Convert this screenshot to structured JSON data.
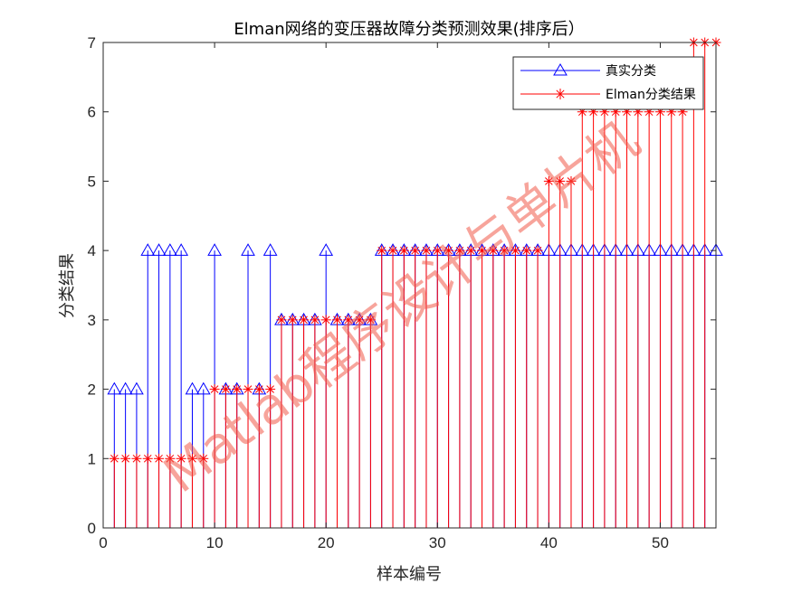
{
  "chart_data": {
    "type": "stem",
    "title": "Elman网络的变压器故障分类预测效果(排序后）",
    "xlabel": "样本编号",
    "ylabel": "分类结果",
    "xlim": [
      0,
      55
    ],
    "ylim": [
      0,
      7
    ],
    "xticks": [
      0,
      10,
      20,
      30,
      40,
      50
    ],
    "yticks": [
      0,
      1,
      2,
      3,
      4,
      5,
      6,
      7
    ],
    "grid": false,
    "legend_position": "top-right",
    "series": [
      {
        "name": "真实分类",
        "color": "#0000ff",
        "marker": "triangle",
        "x": [
          1,
          2,
          3,
          4,
          5,
          6,
          7,
          8,
          9,
          10,
          11,
          12,
          13,
          14,
          15,
          16,
          17,
          18,
          19,
          20,
          21,
          22,
          23,
          24,
          25,
          26,
          27,
          28,
          29,
          30,
          31,
          32,
          33,
          34,
          35,
          36,
          37,
          38,
          39,
          40,
          41,
          42,
          43,
          44,
          45,
          46,
          47,
          48,
          49,
          50,
          51,
          52,
          53,
          54,
          55
        ],
        "values": [
          2,
          2,
          2,
          4,
          4,
          4,
          4,
          2,
          2,
          4,
          2,
          2,
          4,
          2,
          4,
          3,
          3,
          3,
          3,
          4,
          3,
          3,
          3,
          3,
          4,
          4,
          4,
          4,
          4,
          4,
          4,
          4,
          4,
          4,
          4,
          4,
          4,
          4,
          4,
          4,
          4,
          4,
          4,
          4,
          4,
          4,
          4,
          4,
          4,
          4,
          4,
          4,
          4,
          4,
          4
        ]
      },
      {
        "name": "Elman分类结果",
        "color": "#ff0000",
        "marker": "asterisk",
        "x": [
          1,
          2,
          3,
          4,
          5,
          6,
          7,
          8,
          9,
          10,
          11,
          12,
          13,
          14,
          15,
          16,
          17,
          18,
          19,
          20,
          21,
          22,
          23,
          24,
          25,
          26,
          27,
          28,
          29,
          30,
          31,
          32,
          33,
          34,
          35,
          36,
          37,
          38,
          39,
          40,
          41,
          42,
          43,
          44,
          45,
          46,
          47,
          48,
          49,
          50,
          51,
          52,
          53,
          54,
          55
        ],
        "values": [
          1,
          1,
          1,
          1,
          1,
          1,
          1,
          1,
          1,
          2,
          2,
          2,
          2,
          2,
          2,
          3,
          3,
          3,
          3,
          3,
          3,
          3,
          3,
          3,
          4,
          4,
          4,
          4,
          4,
          4,
          4,
          4,
          4,
          4,
          4,
          4,
          4,
          4,
          4,
          5,
          5,
          5,
          6,
          6,
          6,
          6,
          6,
          6,
          6,
          6,
          6,
          6,
          7,
          7,
          7
        ]
      }
    ]
  },
  "watermark": "Matlab程序设计与单片机"
}
